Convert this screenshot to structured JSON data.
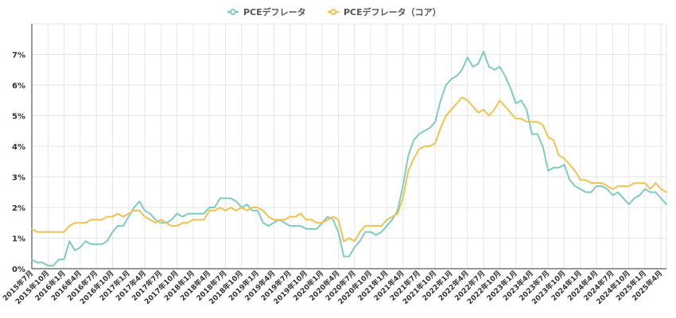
{
  "chart_data": {
    "type": "line",
    "legend_position": "top-center",
    "grid": true,
    "ylim": [
      0,
      8
    ],
    "y_ticks": [
      0,
      1,
      2,
      3,
      4,
      5,
      6,
      7
    ],
    "y_tick_labels": [
      "0%",
      "1%",
      "2%",
      "3%",
      "4%",
      "5%",
      "6%",
      "7%"
    ],
    "x_start": "2015-07",
    "x_end": "2025-05",
    "x_tick_labels": [
      "2015年7月",
      "2015年10月",
      "2016年1月",
      "2016年4月",
      "2016年7月",
      "2016年10月",
      "2017年1月",
      "2017年4月",
      "2017年7月",
      "2017年10月",
      "2018年1月",
      "2018年4月",
      "2018年7月",
      "2018年10月",
      "2019年1月",
      "2019年4月",
      "2019年7月",
      "2019年10月",
      "2020年1月",
      "2020年4月",
      "2020年7月",
      "2020年10月",
      "2021年1月",
      "2021年4月",
      "2021年7月",
      "2021年10月",
      "2022年1月",
      "2022年4月",
      "2022年7月",
      "2022年10月",
      "2023年1月",
      "2023年4月",
      "2023年7月",
      "2023年10月",
      "2024年1月",
      "2024年4月",
      "2024年7月",
      "2024年10月",
      "2025年1月",
      "2025年4月"
    ],
    "series": [
      {
        "name": "PCEデフレータ",
        "color": "#7ecbc3",
        "values": [
          0.3,
          0.2,
          0.2,
          0.1,
          0.1,
          0.3,
          0.3,
          0.9,
          0.6,
          0.7,
          0.9,
          0.8,
          0.8,
          0.8,
          0.9,
          1.2,
          1.4,
          1.4,
          1.7,
          2.0,
          2.2,
          1.9,
          1.8,
          1.6,
          1.5,
          1.5,
          1.6,
          1.8,
          1.7,
          1.8,
          1.8,
          1.8,
          1.8,
          2.0,
          2.0,
          2.3,
          2.3,
          2.3,
          2.2,
          2.0,
          2.1,
          1.9,
          1.9,
          1.5,
          1.4,
          1.5,
          1.6,
          1.5,
          1.4,
          1.4,
          1.4,
          1.3,
          1.3,
          1.3,
          1.5,
          1.7,
          1.6,
          1.2,
          0.4,
          0.4,
          0.7,
          0.9,
          1.2,
          1.2,
          1.1,
          1.2,
          1.4,
          1.6,
          1.9,
          2.7,
          3.7,
          4.2,
          4.4,
          4.5,
          4.6,
          4.8,
          5.5,
          6.0,
          6.2,
          6.3,
          6.5,
          6.9,
          6.6,
          6.7,
          7.1,
          6.6,
          6.5,
          6.6,
          6.3,
          5.9,
          5.4,
          5.5,
          5.2,
          4.4,
          4.4,
          4.0,
          3.2,
          3.3,
          3.3,
          3.4,
          2.9,
          2.7,
          2.6,
          2.5,
          2.5,
          2.7,
          2.7,
          2.6,
          2.4,
          2.5,
          2.3,
          2.1,
          2.3,
          2.4,
          2.6,
          2.5,
          2.5,
          2.3,
          2.1
        ]
      },
      {
        "name": "PCEデフレータ（コア）",
        "color": "#f2c14e",
        "values": [
          1.3,
          1.2,
          1.2,
          1.2,
          1.2,
          1.2,
          1.2,
          1.4,
          1.5,
          1.5,
          1.5,
          1.6,
          1.6,
          1.6,
          1.7,
          1.7,
          1.8,
          1.7,
          1.8,
          1.9,
          1.9,
          1.7,
          1.6,
          1.5,
          1.6,
          1.5,
          1.4,
          1.4,
          1.5,
          1.5,
          1.6,
          1.6,
          1.6,
          1.9,
          1.9,
          2.0,
          1.9,
          2.0,
          1.9,
          2.0,
          1.9,
          2.0,
          2.0,
          1.9,
          1.7,
          1.6,
          1.6,
          1.6,
          1.7,
          1.7,
          1.8,
          1.6,
          1.6,
          1.5,
          1.5,
          1.6,
          1.7,
          1.6,
          0.9,
          1.0,
          0.9,
          1.2,
          1.4,
          1.4,
          1.4,
          1.4,
          1.6,
          1.7,
          1.8,
          2.3,
          3.2,
          3.6,
          3.9,
          4.0,
          4.0,
          4.1,
          4.6,
          5.0,
          5.2,
          5.4,
          5.6,
          5.5,
          5.3,
          5.1,
          5.2,
          5.0,
          5.2,
          5.5,
          5.3,
          5.1,
          4.9,
          4.9,
          4.8,
          4.8,
          4.8,
          4.7,
          4.3,
          4.2,
          3.7,
          3.6,
          3.4,
          3.2,
          2.9,
          2.9,
          2.8,
          2.8,
          2.8,
          2.7,
          2.6,
          2.7,
          2.7,
          2.7,
          2.8,
          2.8,
          2.8,
          2.6,
          2.8,
          2.6,
          2.5
        ]
      }
    ]
  }
}
